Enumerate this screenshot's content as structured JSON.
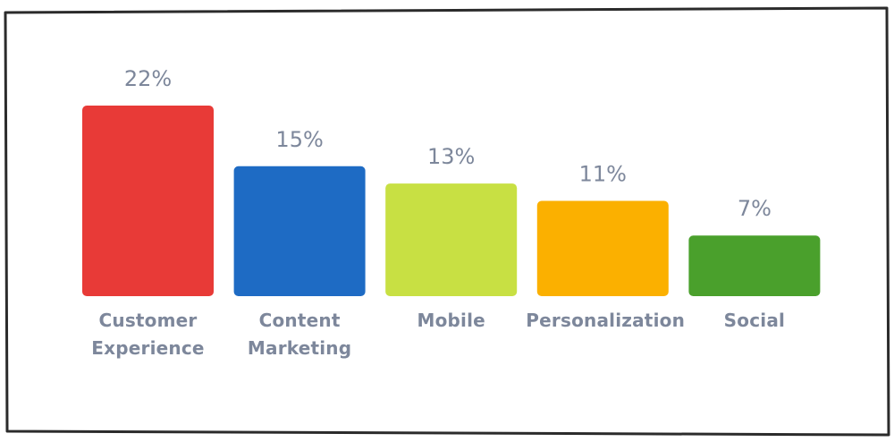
{
  "chart_data": {
    "type": "bar",
    "categories": [
      "Customer Experience",
      "Content Marketing",
      "Mobile",
      "Personalization",
      "Social"
    ],
    "values": [
      22,
      15,
      13,
      11,
      7
    ],
    "value_labels": [
      "22%",
      "15%",
      "13%",
      "11%",
      "7%"
    ],
    "colors": [
      "#e83a37",
      "#1e6bc4",
      "#c8e043",
      "#fbb000",
      "#4aa02c"
    ]
  }
}
